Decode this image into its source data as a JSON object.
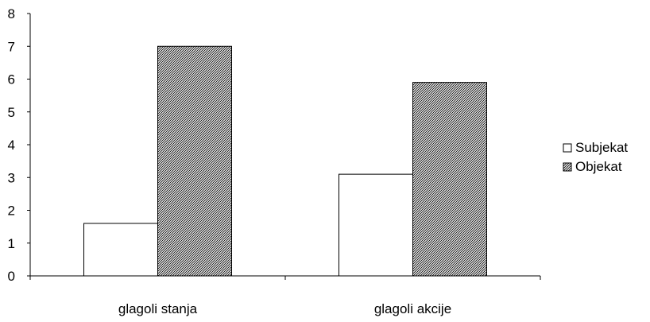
{
  "chart_data": {
    "type": "bar",
    "title": "",
    "xlabel": "",
    "ylabel": "",
    "categories": [
      "glagoli stanja",
      "glagoli akcije"
    ],
    "series": [
      {
        "name": "Subjekat",
        "values": [
          1.6,
          3.1
        ],
        "fill": "#ffffff",
        "pattern": "none"
      },
      {
        "name": "Objekat",
        "values": [
          7.0,
          5.9
        ],
        "fill": "#ffffff",
        "pattern": "dense diagonal hatch"
      }
    ],
    "ylim": [
      0,
      8
    ],
    "yticks": [
      "0",
      "1",
      "2",
      "3",
      "4",
      "5",
      "6",
      "7",
      "8"
    ],
    "grid": false,
    "legend_position": "right",
    "colors": {
      "axis": "#000000",
      "bar_stroke": "#000000",
      "hatch": "#000000"
    }
  }
}
